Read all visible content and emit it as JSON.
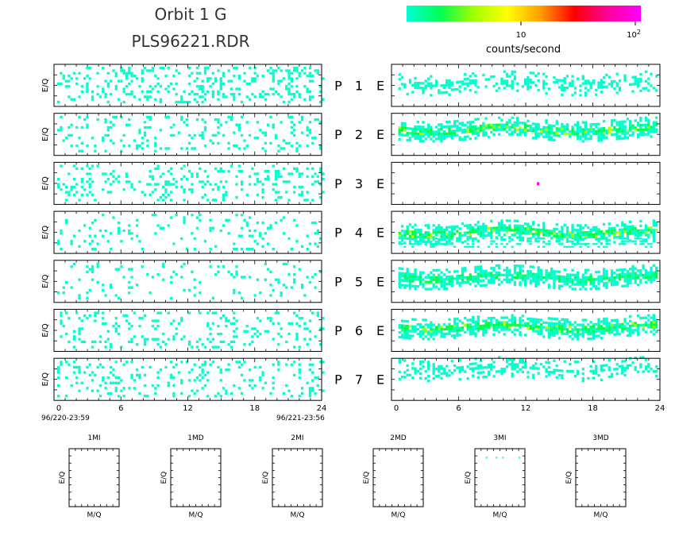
{
  "header": {
    "title_line1": "Orbit 1 G",
    "title_line2": "PLS96221.RDR"
  },
  "colorbar": {
    "label": "counts/second",
    "tick_10": "10",
    "tick_100_base": "10",
    "tick_100_exp": "2",
    "colors": [
      "#00ffd5",
      "#00ff55",
      "#a0ff00",
      "#ffff00",
      "#ff9f00",
      "#ff0000",
      "#ff0099",
      "#ff00ff"
    ]
  },
  "colors": {
    "scatter_low": "#00ffcc",
    "band_mid": "#00ff40",
    "band_high": "#aaff00",
    "frame": "#000000",
    "hot_pixel": "#ff00ff"
  },
  "panels": {
    "y_label": "E/Q",
    "rows": [
      {
        "p_label": "P",
        "num": "1",
        "e_label": "E"
      },
      {
        "p_label": "P",
        "num": "2",
        "e_label": "E"
      },
      {
        "p_label": "P",
        "num": "3",
        "e_label": "E"
      },
      {
        "p_label": "P",
        "num": "4",
        "e_label": "E"
      },
      {
        "p_label": "P",
        "num": "5",
        "e_label": "E"
      },
      {
        "p_label": "P",
        "num": "6",
        "e_label": "E"
      },
      {
        "p_label": "P",
        "num": "7",
        "e_label": "E"
      }
    ],
    "left_xticks": [
      "0",
      "6",
      "12",
      "18",
      "24"
    ],
    "right_xticks": [
      "0",
      "6",
      "12",
      "18",
      "24"
    ],
    "start_time": "96/220-23:59",
    "end_time": "96/221-23:56"
  },
  "mq_panels": {
    "y_label": "E/Q",
    "x_label": "M/Q",
    "titles": [
      "1MI",
      "1MD",
      "2MI",
      "2MD",
      "3MI",
      "3MD"
    ]
  },
  "chart_data": {
    "type": "heatmap",
    "x_unit_range": [
      0,
      24
    ],
    "xticks": [
      0,
      6,
      12,
      18,
      24
    ],
    "colorscale": "log counts/second, 1 to 100",
    "left_column": {
      "description_source": "scattered low-count pixels across all hours, panels 1-7",
      "density": [
        0.22,
        0.14,
        0.16,
        0.11,
        0.08,
        0.13,
        0.13
      ]
    },
    "right_column": {
      "band_center": [
        0.35,
        0.42,
        null,
        0.3,
        0.4,
        0.38,
        0.55
      ],
      "band_strength": [
        0.15,
        0.75,
        0.0,
        0.75,
        0.6,
        0.85,
        0.25
      ],
      "hot_pixel_panel3_hour": 13
    },
    "mq_panels_occupied": [
      false,
      false,
      false,
      false,
      true,
      false
    ]
  }
}
